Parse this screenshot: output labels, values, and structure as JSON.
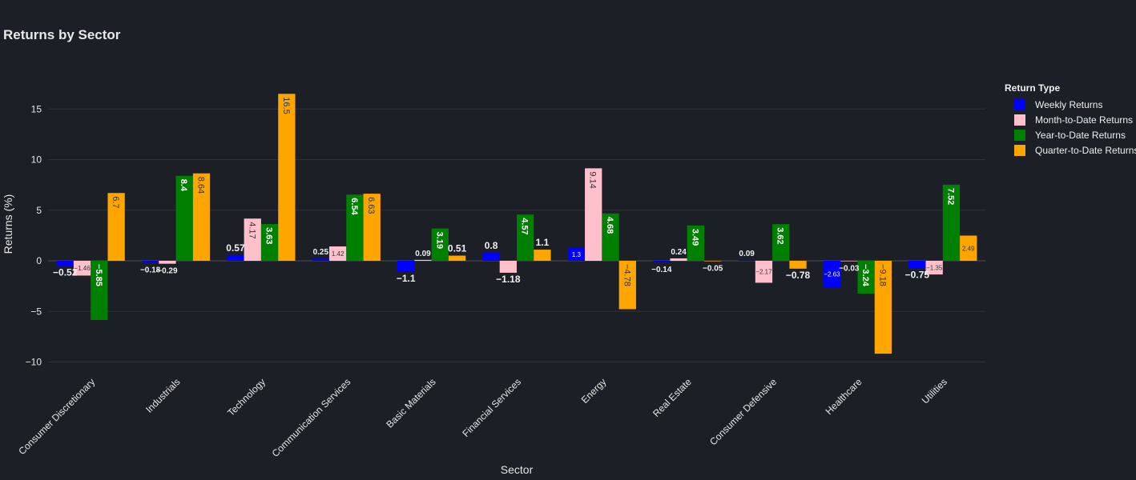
{
  "chart_data": {
    "type": "bar",
    "title": "Returns by Sector",
    "xlabel": "Sector",
    "ylabel": "Returns (%)",
    "ylim": [
      -11.5,
      19.5
    ],
    "yticks": [
      -10,
      -5,
      0,
      5,
      10,
      15
    ],
    "ytick_labels": [
      "−10",
      "−5",
      "0",
      "5",
      "10",
      "15"
    ],
    "grid": true,
    "legend_title": "Return Type",
    "legend_position": "right",
    "categories": [
      "Consumer Discretionary",
      "Industrials",
      "Technology",
      "Communication Services",
      "Basic Materials",
      "Financial Services",
      "Energy",
      "Real Estate",
      "Consumer Defensive",
      "Healthcare",
      "Utilities"
    ],
    "series": [
      {
        "name": "Weekly Returns",
        "color": "#0000ff",
        "values": [
          -0.52,
          -0.18,
          0.57,
          0.25,
          -1.1,
          0.8,
          1.3,
          -0.14,
          0.09,
          -2.63,
          -0.75
        ],
        "labels": [
          "−0.52",
          "−0.18",
          "0.57",
          "0.25",
          "−1.1",
          "0.8",
          "1.3",
          "−0.14",
          "0.09",
          "−2.63",
          "−0.75"
        ]
      },
      {
        "name": "Month-to-Date Returns",
        "color": "#ffc0cb",
        "values": [
          -1.46,
          -0.29,
          4.17,
          1.42,
          0.09,
          -1.18,
          9.14,
          0.24,
          -2.17,
          -0.03,
          -1.35
        ],
        "labels": [
          "−1.46",
          "−0.29",
          "4.17",
          "1.42",
          "0.09",
          "−1.18",
          "9.14",
          "0.24",
          "−2.17",
          "−0.03",
          "−1.35"
        ]
      },
      {
        "name": "Year-to-Date Returns",
        "color": "#008000",
        "values": [
          -5.85,
          8.4,
          3.63,
          6.54,
          3.19,
          4.57,
          4.68,
          3.49,
          3.62,
          -3.24,
          7.52
        ],
        "labels": [
          "−5.85",
          "8.4",
          "3.63",
          "6.54",
          "3.19",
          "4.57",
          "4.68",
          "3.49",
          "3.62",
          "−3.24",
          "7.52"
        ]
      },
      {
        "name": "Quarter-to-Date Returns",
        "color": "#ffa500",
        "values": [
          6.7,
          8.64,
          16.5,
          6.63,
          0.51,
          1.1,
          -4.78,
          -0.05,
          -0.78,
          -9.18,
          2.49
        ],
        "labels": [
          "6.7",
          "8.64",
          "16.5",
          "6.63",
          "0.51",
          "1.1",
          "−4.78",
          "−0.05",
          "−0.78",
          "−9.18",
          "2.49"
        ]
      }
    ]
  }
}
